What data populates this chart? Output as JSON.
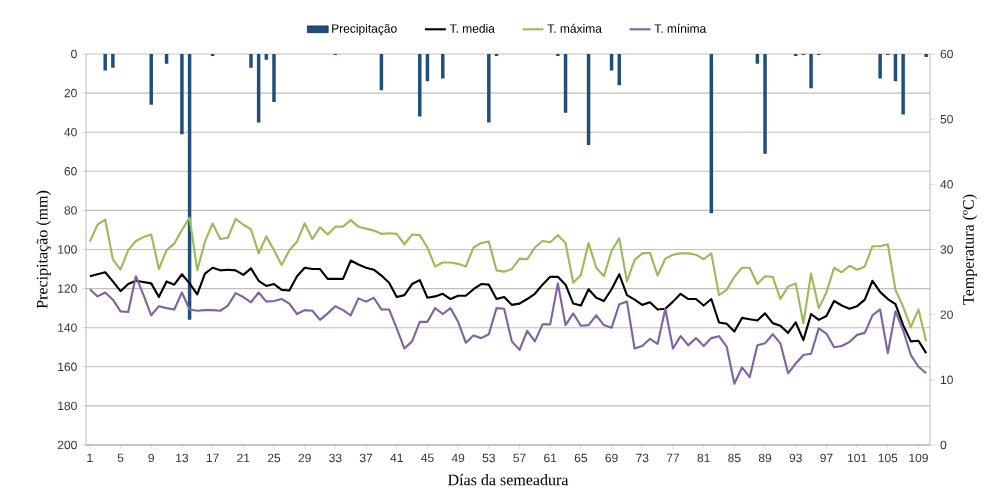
{
  "chart_data": {
    "type": "line",
    "xlabel": "Días da semeadura",
    "ylabel": "Precipitação (mm)",
    "y2label": "Temperatura (ºC)",
    "x": [
      1,
      2,
      3,
      4,
      5,
      6,
      7,
      8,
      9,
      10,
      11,
      12,
      13,
      14,
      15,
      16,
      17,
      18,
      19,
      20,
      21,
      22,
      23,
      24,
      25,
      26,
      27,
      28,
      29,
      30,
      31,
      32,
      33,
      34,
      35,
      36,
      37,
      38,
      39,
      40,
      41,
      42,
      43,
      44,
      45,
      46,
      47,
      48,
      49,
      50,
      51,
      52,
      53,
      54,
      55,
      56,
      57,
      58,
      59,
      60,
      61,
      62,
      63,
      64,
      65,
      66,
      67,
      68,
      69,
      70,
      71,
      72,
      73,
      74,
      75,
      76,
      77,
      78,
      79,
      80,
      81,
      82,
      83,
      84,
      85,
      86,
      87,
      88,
      89,
      90,
      91,
      92,
      93,
      94,
      95,
      96,
      97,
      98,
      99,
      100,
      101,
      102,
      103,
      104,
      105,
      106,
      107,
      108,
      109,
      110
    ],
    "xlim": [
      0.5,
      110.5
    ],
    "xticks": [
      1,
      5,
      9,
      13,
      17,
      21,
      25,
      29,
      33,
      37,
      41,
      45,
      49,
      53,
      57,
      61,
      65,
      69,
      73,
      77,
      81,
      85,
      89,
      93,
      97,
      101,
      105,
      109
    ],
    "ylim": [
      200,
      0
    ],
    "yticks": [
      0,
      20,
      40,
      60,
      80,
      100,
      120,
      140,
      160,
      180,
      200
    ],
    "y2lim": [
      0,
      60
    ],
    "y2ticks": [
      0,
      10,
      20,
      30,
      40,
      50,
      60
    ],
    "grid": "y",
    "legend": "top",
    "marker": "none",
    "series": [
      {
        "name": "Precipitação",
        "type": "bar",
        "axis": "y",
        "color": "#1f4e79",
        "values": [
          0,
          0,
          8.5,
          7,
          0,
          0,
          0,
          0,
          26,
          0,
          5,
          0,
          41,
          136,
          0,
          0,
          1,
          0,
          0,
          0,
          0,
          7,
          35,
          3,
          24.5,
          0,
          0,
          0,
          0,
          0,
          0,
          0,
          0.5,
          0,
          0,
          0,
          0,
          0,
          18.5,
          0,
          0,
          0,
          0,
          32,
          14,
          0,
          12.5,
          0,
          0,
          0,
          0,
          0,
          35,
          1,
          0,
          0,
          0,
          0,
          0,
          0,
          0,
          1,
          30,
          0,
          0,
          46.5,
          0,
          0,
          8.5,
          16,
          0,
          0,
          0,
          0,
          0,
          0,
          0,
          0,
          0,
          0,
          0,
          81.5,
          0,
          0,
          0,
          0,
          0,
          5,
          51,
          0,
          0,
          0,
          1,
          0.5,
          17.5,
          0.5,
          0,
          0,
          0,
          0,
          0,
          0,
          0,
          12.5,
          0.5,
          14,
          31,
          0,
          0,
          1.5
        ]
      },
      {
        "name": "T. media",
        "axis": "y2",
        "color": "#000000",
        "values": [
          25.9,
          26.2,
          26.5,
          25.1,
          23.6,
          24.7,
          25.2,
          25,
          24.8,
          22.7,
          25.1,
          24.6,
          26.2,
          24.8,
          23.1,
          26.3,
          27.2,
          26.8,
          26.9,
          26.8,
          26.1,
          27.1,
          25.2,
          24.4,
          24.7,
          23.8,
          23.7,
          25.9,
          27.2,
          27,
          27,
          25.5,
          25.5,
          25.5,
          28.3,
          27.7,
          27.2,
          26.9,
          26,
          24.9,
          22.7,
          23,
          24.7,
          25.3,
          22.6,
          22.8,
          23.2,
          22.4,
          22.9,
          22.9,
          23.9,
          24.7,
          24.6,
          22.4,
          22.7,
          21.5,
          21.7,
          22.4,
          23.2,
          24.6,
          25.8,
          25.8,
          24.6,
          21.7,
          21.4,
          23.9,
          22.6,
          22.1,
          23.9,
          26.2,
          23,
          22.3,
          21.5,
          21.9,
          20.8,
          20.9,
          22,
          23.2,
          22.4,
          22.4,
          21.4,
          22.4,
          18.8,
          18.6,
          17.4,
          19.5,
          19.3,
          19.1,
          20.2,
          18.7,
          18.3,
          17.2,
          18.8,
          16.1,
          20.1,
          19.2,
          19.8,
          22.1,
          21.4,
          20.9,
          21.3,
          22.3,
          25.2,
          23.5,
          22.4,
          21.6,
          18.4,
          15.9,
          16,
          14.1
        ]
      },
      {
        "name": "T. máxima",
        "axis": "y2",
        "color": "#9bbb59",
        "values": [
          31.2,
          33.8,
          34.6,
          28.5,
          26.9,
          29.9,
          31.3,
          31.9,
          32.3,
          27,
          29.9,
          30.9,
          33,
          34.9,
          26.8,
          31.2,
          34,
          31.6,
          31.8,
          34.7,
          33.8,
          33.1,
          29.4,
          32,
          29.9,
          27.6,
          29.9,
          31.2,
          34,
          31.6,
          33.4,
          32.3,
          33.5,
          33.5,
          34.5,
          33.5,
          33.2,
          32.9,
          32.4,
          32.5,
          32.4,
          30.8,
          32.3,
          32.2,
          30.3,
          27.4,
          28,
          28,
          27.8,
          27.4,
          30.3,
          31,
          31.2,
          26.8,
          26.6,
          27,
          28.6,
          28.5,
          30.3,
          31.3,
          31.1,
          32.2,
          31,
          24.9,
          26.1,
          31,
          27.2,
          25.9,
          29.8,
          31.7,
          25.1,
          28.4,
          29.4,
          29.5,
          26,
          28.6,
          29.2,
          29.4,
          29.4,
          29.2,
          28.5,
          29.4,
          23,
          23.8,
          25.8,
          27.2,
          27.2,
          24.7,
          25.9,
          25.8,
          22.4,
          24.3,
          24.8,
          18.7,
          26.3,
          21,
          23.4,
          27.2,
          26.5,
          27.5,
          26.9,
          27.4,
          30.5,
          30.5,
          30.8,
          23.8,
          21.2,
          18.1,
          20.8,
          15.9
        ]
      },
      {
        "name": "T. mínima",
        "axis": "y2",
        "color": "#8064a2",
        "values": [
          23.9,
          22.8,
          23.4,
          22.3,
          20.5,
          20.4,
          25.9,
          23,
          19.9,
          21.3,
          21,
          20.8,
          23.4,
          20.8,
          20.6,
          20.7,
          20.7,
          20.6,
          21.4,
          23.3,
          22.7,
          21.9,
          23.4,
          22,
          22.1,
          22.4,
          21.7,
          20.1,
          20.7,
          20.6,
          19.2,
          20.2,
          21.3,
          20.7,
          19.9,
          22.5,
          22,
          22.6,
          20.8,
          20.8,
          17.9,
          14.8,
          15.9,
          18.9,
          18.9,
          21,
          20.1,
          21,
          18.9,
          15.7,
          16.8,
          16.4,
          17,
          21,
          20.9,
          15.9,
          14.6,
          17.5,
          15.9,
          18.5,
          18.5,
          24.8,
          18.4,
          20.2,
          18.3,
          18.4,
          19.9,
          18.4,
          18,
          21.6,
          22,
          14.8,
          15.2,
          16.3,
          15.5,
          20.9,
          14.8,
          16.7,
          15.3,
          16.4,
          15.2,
          16.4,
          16.7,
          15.1,
          9.4,
          11.9,
          10.4,
          15.3,
          15.6,
          17,
          15.6,
          11,
          12.5,
          13.8,
          14,
          17.9,
          17.1,
          15,
          15.2,
          15.8,
          16.9,
          17.2,
          19.9,
          20.8,
          14.1,
          20.5,
          17.6,
          13.8,
          12,
          11
        ]
      }
    ]
  }
}
